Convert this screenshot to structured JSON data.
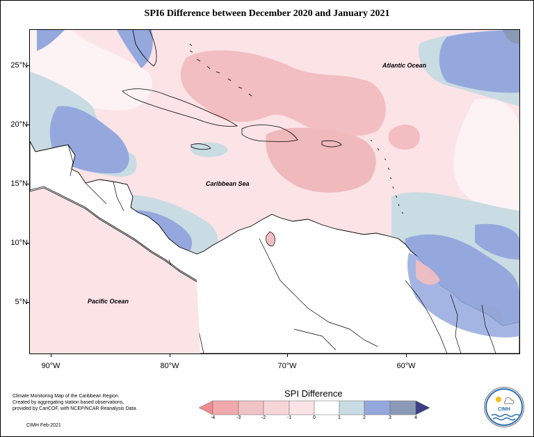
{
  "title": "SPI6 Difference between December 2020 and January 2021",
  "lat_labels": [
    "25°N",
    "20°N",
    "15°N",
    "10°N",
    "5°N"
  ],
  "lon_labels": [
    "90°W",
    "80°W",
    "70°W",
    "60°W"
  ],
  "place_labels": {
    "atlantic": "Atlantic Ocean",
    "caribbean": "Caribbean Sea",
    "pacific": "Pacific Ocean"
  },
  "info_text": {
    "line1": "Climate Monitoring Map of the Caribbean Region.",
    "line2": "Created by aggregating station based observations,",
    "line3": "provided by CariCOF, with NCEP/NCAR Reanalysis Data.",
    "credit": "CIMH Feb-2021"
  },
  "legend": {
    "title": "SPI Difference",
    "ticks": [
      "-4",
      "-3",
      "-2",
      "-1",
      "0",
      "1",
      "2",
      "3",
      "4"
    ],
    "colors": [
      "#f08b8f",
      "#f2a9ac",
      "#f0c4c7",
      "#fbe3e6",
      "#ffffff",
      "#c9dbe3",
      "#95a8de",
      "#8a9ab6",
      "#5b6990",
      "#3c3f83"
    ]
  },
  "logo": {
    "text": "CIMH"
  }
}
